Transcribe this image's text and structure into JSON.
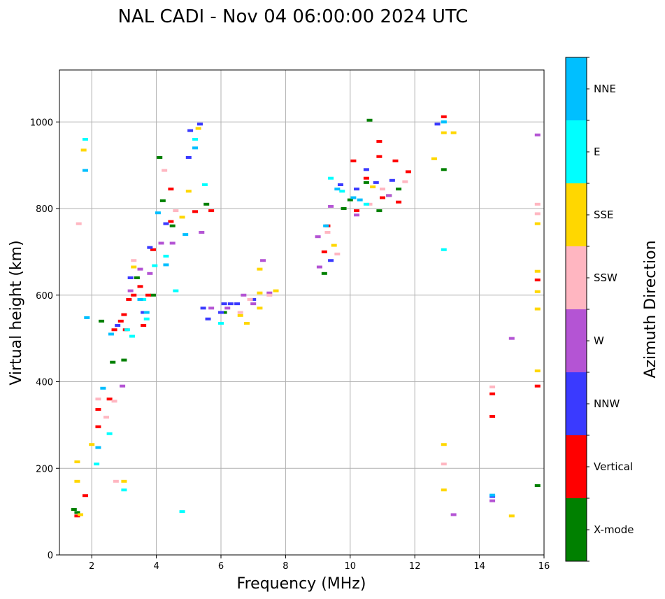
{
  "chart_data": {
    "type": "scatter",
    "title": "NAL CADI - Nov 04 06:00:00 2024 UTC",
    "xlabel": "Frequency (MHz)",
    "ylabel": "Virtual height (km)",
    "xlim": [
      1,
      16
    ],
    "ylim": [
      0,
      1120
    ],
    "xticks": [
      2,
      4,
      6,
      8,
      10,
      12,
      14,
      16
    ],
    "yticks": [
      0,
      200,
      400,
      600,
      800,
      1000
    ],
    "grid": true,
    "colorbar": {
      "label": "Azimuth Direction",
      "categories": [
        {
          "name": "X-mode",
          "color": "#008000"
        },
        {
          "name": "Vertical",
          "color": "#ff0000"
        },
        {
          "name": "NNW",
          "color": "#3a3aff"
        },
        {
          "name": "W",
          "color": "#b454d4"
        },
        {
          "name": "SSW",
          "color": "#ffb6c1"
        },
        {
          "name": "SSE",
          "color": "#ffd700"
        },
        {
          "name": "E",
          "color": "#00ffff"
        },
        {
          "name": "NNE",
          "color": "#00bfff"
        }
      ]
    },
    "series": [
      {
        "name": "X-mode",
        "points": [
          [
            1.45,
            105
          ],
          [
            1.55,
            98
          ],
          [
            2.3,
            540
          ],
          [
            2.65,
            445
          ],
          [
            3.0,
            450
          ],
          [
            3.4,
            640
          ],
          [
            3.9,
            600
          ],
          [
            4.1,
            918
          ],
          [
            4.2,
            818
          ],
          [
            4.5,
            760
          ],
          [
            5.55,
            810
          ],
          [
            6.1,
            560
          ],
          [
            9.2,
            650
          ],
          [
            9.8,
            800
          ],
          [
            10.0,
            820
          ],
          [
            10.6,
            1004
          ],
          [
            10.9,
            795
          ],
          [
            11.5,
            845
          ],
          [
            12.9,
            890
          ],
          [
            15.8,
            160
          ],
          [
            10.5,
            860
          ],
          [
            11.2,
            830
          ]
        ]
      },
      {
        "name": "Vertical",
        "points": [
          [
            1.55,
            90
          ],
          [
            1.8,
            137
          ],
          [
            2.2,
            336
          ],
          [
            2.2,
            296
          ],
          [
            2.55,
            360
          ],
          [
            2.7,
            520
          ],
          [
            2.9,
            540
          ],
          [
            3.0,
            555
          ],
          [
            3.05,
            520
          ],
          [
            3.15,
            590
          ],
          [
            3.3,
            600
          ],
          [
            3.5,
            620
          ],
          [
            3.6,
            530
          ],
          [
            3.75,
            600
          ],
          [
            3.9,
            705
          ],
          [
            4.45,
            845
          ],
          [
            4.45,
            770
          ],
          [
            5.2,
            793
          ],
          [
            5.7,
            795
          ],
          [
            9.2,
            700
          ],
          [
            9.3,
            760
          ],
          [
            10.1,
            910
          ],
          [
            10.2,
            795
          ],
          [
            10.5,
            870
          ],
          [
            10.9,
            955
          ],
          [
            10.9,
            920
          ],
          [
            11.4,
            910
          ],
          [
            11.0,
            825
          ],
          [
            11.5,
            815
          ],
          [
            11.8,
            885
          ],
          [
            12.9,
            1012
          ],
          [
            14.4,
            372
          ],
          [
            14.4,
            320
          ],
          [
            15.8,
            635
          ],
          [
            15.8,
            390
          ]
        ]
      },
      {
        "name": "NNW",
        "points": [
          [
            2.8,
            530
          ],
          [
            3.2,
            640
          ],
          [
            3.6,
            560
          ],
          [
            3.8,
            710
          ],
          [
            4.3,
            765
          ],
          [
            5.05,
            980
          ],
          [
            5.0,
            918
          ],
          [
            5.35,
            995
          ],
          [
            5.45,
            570
          ],
          [
            5.6,
            545
          ],
          [
            6.0,
            560
          ],
          [
            6.1,
            580
          ],
          [
            6.3,
            580
          ],
          [
            6.5,
            580
          ],
          [
            7.0,
            590
          ],
          [
            9.4,
            680
          ],
          [
            9.7,
            855
          ],
          [
            10.2,
            845
          ],
          [
            10.5,
            890
          ],
          [
            10.8,
            860
          ],
          [
            11.3,
            865
          ],
          [
            12.7,
            995
          ],
          [
            14.4,
            135
          ]
        ]
      },
      {
        "name": "W",
        "points": [
          [
            2.95,
            390
          ],
          [
            3.2,
            610
          ],
          [
            3.5,
            660
          ],
          [
            3.8,
            650
          ],
          [
            4.15,
            720
          ],
          [
            4.5,
            720
          ],
          [
            5.4,
            745
          ],
          [
            5.7,
            570
          ],
          [
            6.2,
            570
          ],
          [
            6.7,
            600
          ],
          [
            7.0,
            580
          ],
          [
            7.3,
            680
          ],
          [
            7.5,
            605
          ],
          [
            9.0,
            735
          ],
          [
            9.05,
            665
          ],
          [
            9.4,
            805
          ],
          [
            10.2,
            785
          ],
          [
            11.2,
            830
          ],
          [
            13.2,
            93
          ],
          [
            14.4,
            125
          ],
          [
            15.0,
            500
          ],
          [
            15.8,
            970
          ]
        ]
      },
      {
        "name": "SSW",
        "points": [
          [
            1.6,
            765
          ],
          [
            2.2,
            360
          ],
          [
            2.45,
            318
          ],
          [
            2.7,
            355
          ],
          [
            2.75,
            170
          ],
          [
            3.3,
            680
          ],
          [
            4.25,
            888
          ],
          [
            4.6,
            795
          ],
          [
            6.6,
            560
          ],
          [
            6.9,
            590
          ],
          [
            7.5,
            600
          ],
          [
            9.3,
            745
          ],
          [
            9.6,
            695
          ],
          [
            10.6,
            810
          ],
          [
            11.0,
            845
          ],
          [
            11.7,
            862
          ],
          [
            12.9,
            210
          ],
          [
            14.4,
            388
          ],
          [
            15.8,
            810
          ],
          [
            15.8,
            788
          ]
        ]
      },
      {
        "name": "SSE",
        "points": [
          [
            1.55,
            215
          ],
          [
            1.55,
            170
          ],
          [
            1.65,
            93
          ],
          [
            1.75,
            935
          ],
          [
            2.0,
            255
          ],
          [
            3.0,
            170
          ],
          [
            3.3,
            665
          ],
          [
            4.8,
            780
          ],
          [
            5.0,
            840
          ],
          [
            5.3,
            985
          ],
          [
            6.6,
            553
          ],
          [
            6.8,
            535
          ],
          [
            7.2,
            570
          ],
          [
            7.2,
            605
          ],
          [
            7.2,
            660
          ],
          [
            7.7,
            610
          ],
          [
            9.5,
            715
          ],
          [
            10.7,
            850
          ],
          [
            12.6,
            915
          ],
          [
            12.9,
            975
          ],
          [
            12.9,
            255
          ],
          [
            12.9,
            150
          ],
          [
            13.2,
            975
          ],
          [
            15.0,
            90
          ],
          [
            15.8,
            765
          ],
          [
            15.8,
            655
          ],
          [
            15.8,
            608
          ],
          [
            15.8,
            568
          ],
          [
            15.8,
            425
          ]
        ]
      },
      {
        "name": "E",
        "points": [
          [
            1.8,
            960
          ],
          [
            2.15,
            210
          ],
          [
            2.55,
            280
          ],
          [
            3.0,
            150
          ],
          [
            3.1,
            520
          ],
          [
            3.25,
            505
          ],
          [
            3.6,
            590
          ],
          [
            3.7,
            545
          ],
          [
            3.95,
            668
          ],
          [
            4.3,
            690
          ],
          [
            4.6,
            610
          ],
          [
            4.8,
            100
          ],
          [
            5.2,
            960
          ],
          [
            5.5,
            855
          ],
          [
            6.0,
            535
          ],
          [
            9.4,
            870
          ],
          [
            9.75,
            840
          ],
          [
            10.5,
            810
          ],
          [
            12.9,
            705
          ],
          [
            12.9,
            1000
          ]
        ]
      },
      {
        "name": "NNE",
        "points": [
          [
            1.8,
            888
          ],
          [
            1.85,
            548
          ],
          [
            2.2,
            248
          ],
          [
            2.35,
            385
          ],
          [
            2.6,
            510
          ],
          [
            3.5,
            590
          ],
          [
            3.7,
            560
          ],
          [
            4.05,
            790
          ],
          [
            4.3,
            670
          ],
          [
            4.9,
            740
          ],
          [
            5.2,
            940
          ],
          [
            9.25,
            760
          ],
          [
            9.6,
            845
          ],
          [
            10.1,
            825
          ],
          [
            10.3,
            820
          ],
          [
            12.9,
            1000
          ],
          [
            14.4,
            138
          ]
        ]
      }
    ]
  }
}
